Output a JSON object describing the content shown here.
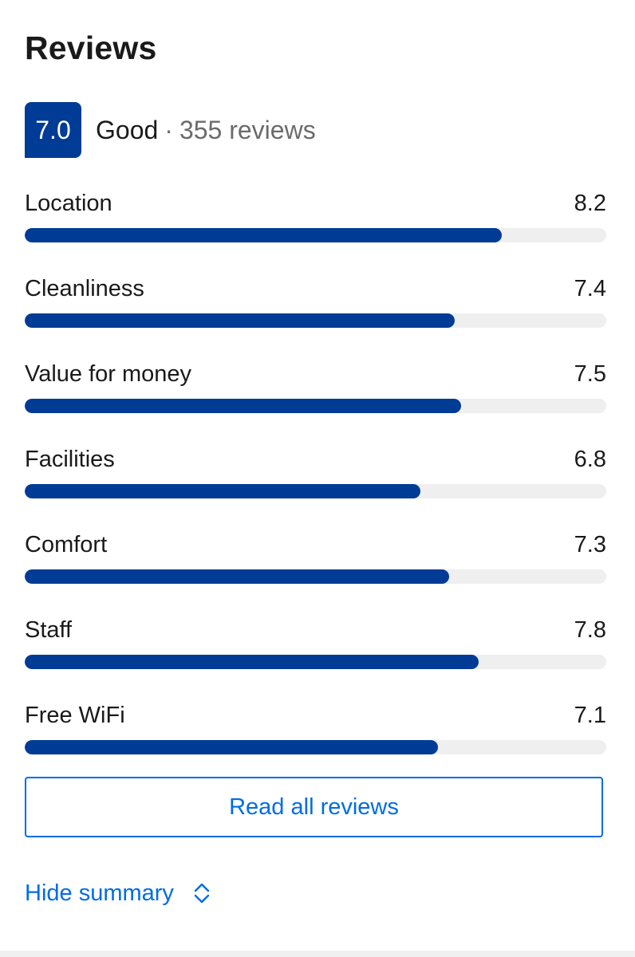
{
  "section": {
    "title": "Reviews"
  },
  "score": {
    "value": "7.0",
    "word": "Good",
    "separator": "·",
    "count": "355 reviews"
  },
  "categories": [
    {
      "label": "Location",
      "score": "8.2",
      "value": 8.2
    },
    {
      "label": "Cleanliness",
      "score": "7.4",
      "value": 7.4
    },
    {
      "label": "Value for money",
      "score": "7.5",
      "value": 7.5
    },
    {
      "label": "Facilities",
      "score": "6.8",
      "value": 6.8
    },
    {
      "label": "Comfort",
      "score": "7.3",
      "value": 7.3
    },
    {
      "label": "Staff",
      "score": "7.8",
      "value": 7.8
    },
    {
      "label": "Free WiFi",
      "score": "7.1",
      "value": 7.1
    }
  ],
  "rating_scale_max": 10,
  "actions": {
    "read_all": "Read all reviews",
    "hide_summary": "Hide summary",
    "hide_summary_icon": "chevron-up-down-icon"
  },
  "colors": {
    "brand_dark_blue": "#003b95",
    "link_blue": "#006ce4",
    "track_gray": "#efefef"
  }
}
